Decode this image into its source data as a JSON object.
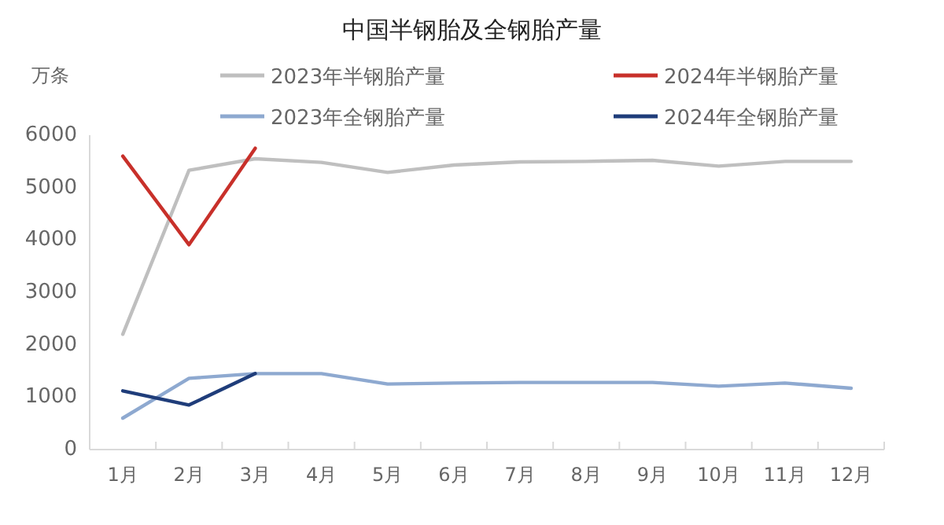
{
  "chart_data": {
    "type": "line",
    "title": "中国半钢胎及全钢胎产量",
    "ylabel": "万条",
    "categories": [
      "1月",
      "2月",
      "3月",
      "4月",
      "5月",
      "6月",
      "7月",
      "8月",
      "9月",
      "10月",
      "11月",
      "12月"
    ],
    "series": [
      {
        "name": "2023年半钢胎产量",
        "color": "#bfbfbf",
        "values": [
          2200,
          5330,
          5550,
          5480,
          5290,
          5430,
          5490,
          5500,
          5520,
          5410,
          5500,
          5500
        ]
      },
      {
        "name": "2024年半钢胎产量",
        "color": "#c8302a",
        "values": [
          5600,
          3910,
          5750,
          null,
          null,
          null,
          null,
          null,
          null,
          null,
          null,
          null
        ]
      },
      {
        "name": "2023年全钢胎产量",
        "color": "#8ea9d0",
        "values": [
          600,
          1360,
          1450,
          1450,
          1250,
          1270,
          1280,
          1280,
          1280,
          1210,
          1270,
          1170
        ]
      },
      {
        "name": "2024年全钢胎产量",
        "color": "#1f3d7a",
        "values": [
          1120,
          850,
          1450,
          null,
          null,
          null,
          null,
          null,
          null,
          null,
          null,
          null
        ]
      }
    ],
    "ylim": [
      0,
      6000
    ],
    "yticks": [
      0,
      1000,
      2000,
      3000,
      4000,
      5000,
      6000
    ],
    "legend": "top",
    "grid": false,
    "marker": "none",
    "line_style": "solid"
  }
}
